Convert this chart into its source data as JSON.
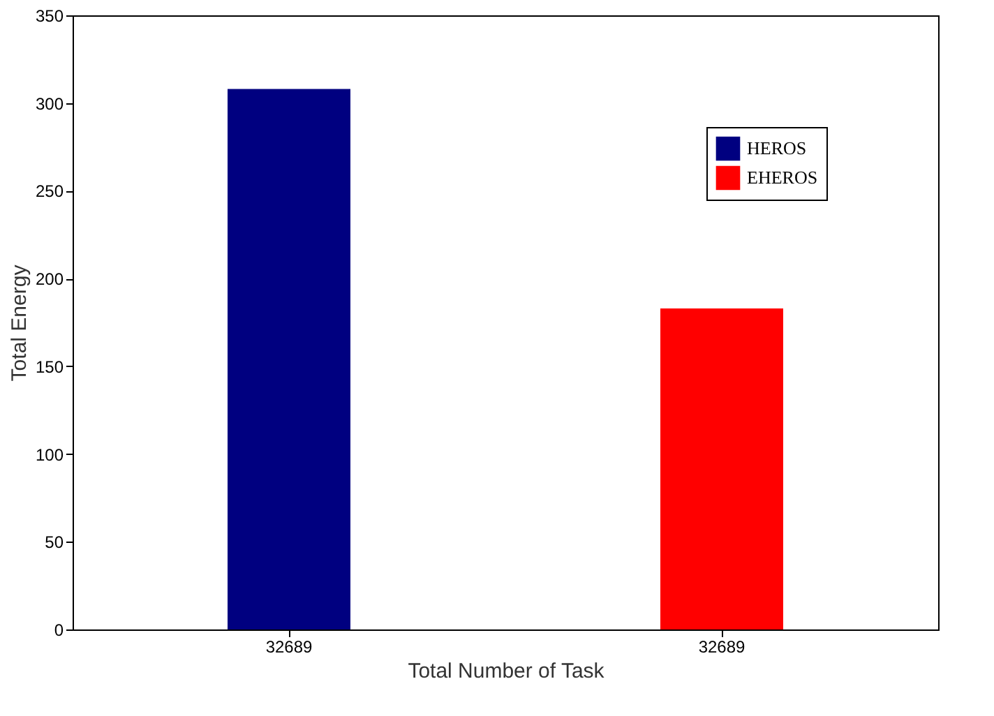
{
  "chart_data": {
    "type": "bar",
    "xlabel": "Total Number of Task",
    "ylabel": "Total Energy",
    "categories": [
      "32689",
      "32689"
    ],
    "series": [
      {
        "name": "HEROS",
        "color": "#000080",
        "values": [
          308,
          null
        ]
      },
      {
        "name": "EHEROS",
        "color": "#ff0000",
        "values": [
          null,
          183
        ]
      }
    ],
    "ylim": [
      0,
      350
    ],
    "yticks": [
      0,
      50,
      100,
      150,
      200,
      250,
      300,
      350
    ],
    "grid": false,
    "legend": "top right"
  }
}
